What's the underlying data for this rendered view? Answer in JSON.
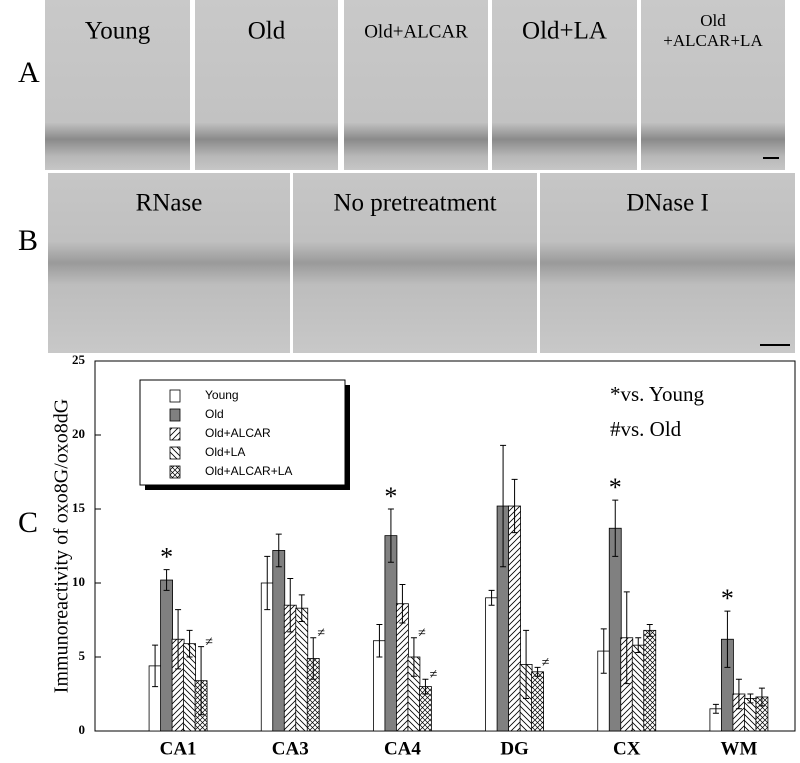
{
  "panel_a": {
    "label": "A",
    "images": [
      [
        "Young"
      ],
      [
        "Old"
      ],
      [
        "Old+ALCAR"
      ],
      [
        "Old+LA"
      ],
      [
        "Old",
        "+ALCAR+LA"
      ]
    ]
  },
  "panel_b": {
    "label": "B",
    "images": [
      [
        "RNase"
      ],
      [
        "No pretreatment"
      ],
      [
        "DNase I"
      ]
    ]
  },
  "chart_data": {
    "type": "bar",
    "panel_label": "C",
    "y_label": "Immunoreactivity of oxo8G/oxo8dG",
    "annotations": [
      "*vs. Young",
      "#vs. Old"
    ],
    "categories": [
      "CA1",
      "CA3",
      "CA4",
      "DG",
      "CX",
      "WM"
    ],
    "ylim": [
      0,
      25
    ],
    "yticks": [
      0,
      5,
      10,
      15,
      20,
      25
    ],
    "legend": "upper-left",
    "series": [
      {
        "name": "Young",
        "color": "#ffffff",
        "pattern": "solid",
        "values": [
          4.4,
          10.0,
          6.1,
          9.0,
          5.4,
          1.5
        ],
        "errors": [
          1.4,
          1.8,
          1.1,
          0.5,
          1.5,
          0.3
        ],
        "markers": [
          null,
          null,
          null,
          null,
          null,
          null
        ]
      },
      {
        "name": "Old",
        "color": "#808080",
        "pattern": "solid",
        "values": [
          10.2,
          12.2,
          13.2,
          15.2,
          13.7,
          6.2
        ],
        "errors": [
          0.7,
          1.1,
          1.8,
          4.1,
          1.9,
          1.9
        ],
        "markers": [
          "*",
          null,
          "*",
          null,
          "*",
          "*"
        ]
      },
      {
        "name": "Old+ALCAR",
        "color": "#ffffff",
        "pattern": "forward-diagonal",
        "values": [
          6.2,
          8.5,
          8.6,
          15.2,
          6.3,
          2.5
        ],
        "errors": [
          2.0,
          1.8,
          1.3,
          1.8,
          3.1,
          1.0
        ],
        "markers": [
          null,
          null,
          null,
          null,
          null,
          null
        ]
      },
      {
        "name": "Old+LA",
        "color": "#ffffff",
        "pattern": "back-diagonal",
        "values": [
          5.9,
          8.3,
          5.0,
          4.5,
          5.8,
          2.2
        ],
        "errors": [
          0.9,
          0.9,
          1.3,
          2.3,
          0.5,
          0.3
        ],
        "markers": [
          null,
          null,
          "≠",
          null,
          null,
          null
        ]
      },
      {
        "name": "Old+ALCAR+LA",
        "color": "#ffffff",
        "pattern": "crosshatch",
        "values": [
          3.4,
          4.9,
          3.0,
          4.0,
          6.8,
          2.3
        ],
        "errors": [
          2.3,
          1.4,
          0.5,
          0.3,
          0.4,
          0.6
        ],
        "markers": [
          "≠",
          "≠",
          "≠",
          "≠",
          null,
          null
        ]
      }
    ]
  }
}
